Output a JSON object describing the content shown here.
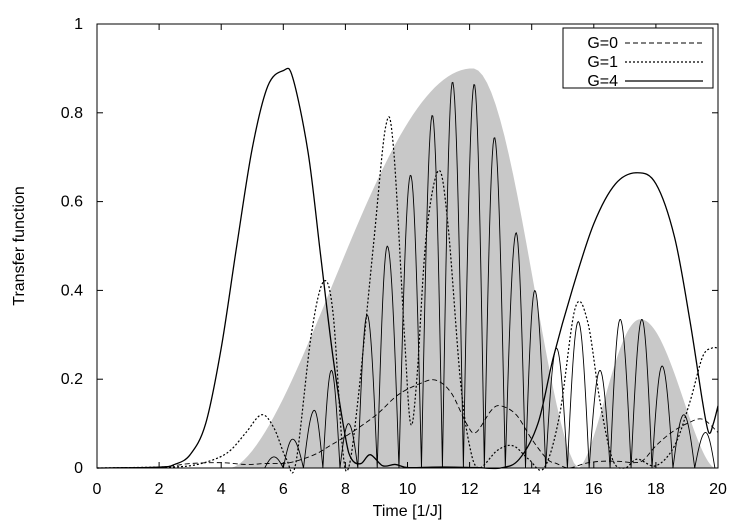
{
  "chart_data": {
    "type": "line",
    "title": "",
    "xlabel": "Time [1/J]",
    "ylabel": "Transfer function",
    "xlim": [
      0,
      20
    ],
    "ylim": [
      0,
      1
    ],
    "x_ticks": [
      "0",
      "2",
      "4",
      "6",
      "8",
      "10",
      "12",
      "14",
      "16",
      "18",
      "20"
    ],
    "y_ticks": [
      "0",
      "0.2",
      "0.4",
      "0.6",
      "0.8",
      "1"
    ],
    "grid": false,
    "legend_position": "top-right",
    "shaded_region": {
      "color": "#c8c8c8",
      "lobes": [
        {
          "x_start": 4.3,
          "x_end": 15.5,
          "peak_x": 12.1,
          "peak_y": 0.9
        },
        {
          "x_start": 15.5,
          "x_end": 19.9,
          "peak_x": 17.5,
          "peak_y": 0.335
        }
      ]
    },
    "series": [
      {
        "name": "G=0",
        "style": "dashed-thin",
        "points": [
          [
            0,
            0
          ],
          [
            2,
            0.002
          ],
          [
            3,
            0.01
          ],
          [
            4,
            0.012
          ],
          [
            4.8,
            0.008
          ],
          [
            5.4,
            0.01
          ],
          [
            6.2,
            0.012
          ],
          [
            7,
            0.03
          ],
          [
            7.5,
            0.05
          ],
          [
            8.2,
            0.08
          ],
          [
            9,
            0.12
          ],
          [
            9.7,
            0.165
          ],
          [
            10.4,
            0.19
          ],
          [
            10.9,
            0.198
          ],
          [
            11.4,
            0.17
          ],
          [
            11.9,
            0.1
          ],
          [
            12.2,
            0.08
          ],
          [
            12.7,
            0.13
          ],
          [
            13.0,
            0.14
          ],
          [
            13.5,
            0.12
          ],
          [
            14.0,
            0.065
          ],
          [
            14.5,
            0.02
          ],
          [
            14.8,
            0.01
          ],
          [
            15.2,
            0.0
          ],
          [
            15.7,
            0.01
          ],
          [
            16.2,
            0.015
          ],
          [
            16.8,
            0.015
          ],
          [
            17.3,
            0.012
          ],
          [
            17.6,
            0.018
          ],
          [
            18.0,
            0.05
          ],
          [
            18.5,
            0.08
          ],
          [
            19.0,
            0.1
          ],
          [
            19.5,
            0.11
          ],
          [
            20,
            0.08
          ]
        ]
      },
      {
        "name": "G=1",
        "style": "dotted",
        "points": [
          [
            0,
            0
          ],
          [
            2,
            0.002
          ],
          [
            3,
            0.005
          ],
          [
            3.8,
            0.02
          ],
          [
            4.3,
            0.04
          ],
          [
            4.8,
            0.08
          ],
          [
            5.3,
            0.12
          ],
          [
            5.7,
            0.09
          ],
          [
            6.1,
            0.02
          ],
          [
            6.4,
            0.01
          ],
          [
            6.9,
            0.3
          ],
          [
            7.3,
            0.42
          ],
          [
            7.6,
            0.35
          ],
          [
            7.9,
            0.05
          ],
          [
            8.1,
            0.0
          ],
          [
            8.4,
            0.15
          ],
          [
            8.9,
            0.5
          ],
          [
            9.3,
            0.77
          ],
          [
            9.55,
            0.72
          ],
          [
            9.9,
            0.3
          ],
          [
            10.1,
            0.1
          ],
          [
            10.3,
            0.2
          ],
          [
            10.6,
            0.52
          ],
          [
            11.0,
            0.67
          ],
          [
            11.3,
            0.55
          ],
          [
            11.7,
            0.2
          ],
          [
            12.0,
            0.05
          ],
          [
            12.3,
            0.0
          ],
          [
            12.9,
            0.04
          ],
          [
            13.4,
            0.05
          ],
          [
            13.9,
            0.02
          ],
          [
            14.4,
            0.0
          ],
          [
            14.9,
            0.12
          ],
          [
            15.4,
            0.36
          ],
          [
            15.8,
            0.33
          ],
          [
            16.2,
            0.15
          ],
          [
            16.6,
            0.02
          ],
          [
            17.0,
            0.0
          ],
          [
            17.4,
            0.02
          ],
          [
            18.0,
            0.005
          ],
          [
            18.6,
            0.05
          ],
          [
            19.1,
            0.15
          ],
          [
            19.5,
            0.25
          ],
          [
            19.8,
            0.27
          ],
          [
            20,
            0.27
          ]
        ]
      },
      {
        "name": "G=4",
        "style": "solid",
        "points": [
          [
            0,
            0
          ],
          [
            2,
            0.002
          ],
          [
            2.5,
            0.008
          ],
          [
            3.0,
            0.03
          ],
          [
            3.5,
            0.1
          ],
          [
            4.0,
            0.27
          ],
          [
            4.5,
            0.5
          ],
          [
            5.0,
            0.72
          ],
          [
            5.5,
            0.86
          ],
          [
            6.0,
            0.895
          ],
          [
            6.3,
            0.88
          ],
          [
            6.8,
            0.71
          ],
          [
            7.2,
            0.48
          ],
          [
            7.6,
            0.25
          ],
          [
            8.0,
            0.07
          ],
          [
            8.2,
            0.02
          ],
          [
            8.5,
            0.01
          ],
          [
            8.8,
            0.03
          ],
          [
            9.2,
            0.005
          ],
          [
            9.6,
            0.008
          ],
          [
            10.0,
            0.001
          ],
          [
            10.8,
            0.002
          ],
          [
            11.5,
            0.002
          ],
          [
            12.2,
            0.001
          ],
          [
            13.0,
            0.0
          ],
          [
            13.6,
            0.02
          ],
          [
            14.2,
            0.1
          ],
          [
            14.7,
            0.25
          ],
          [
            15.3,
            0.4
          ],
          [
            16.0,
            0.55
          ],
          [
            16.7,
            0.64
          ],
          [
            17.4,
            0.665
          ],
          [
            18.0,
            0.64
          ],
          [
            18.6,
            0.52
          ],
          [
            19.1,
            0.33
          ],
          [
            19.5,
            0.15
          ],
          [
            19.7,
            0.08
          ],
          [
            19.85,
            0.1
          ],
          [
            20,
            0.14
          ]
        ]
      },
      {
        "name": "",
        "style": "solid-thin",
        "oscillating_peaks": [
          [
            5.7,
            0.025
          ],
          [
            6.3,
            0.065
          ],
          [
            7.0,
            0.13
          ],
          [
            7.55,
            0.22
          ],
          [
            8.1,
            0.1
          ],
          [
            8.7,
            0.345
          ],
          [
            9.35,
            0.5
          ],
          [
            10.1,
            0.66
          ],
          [
            10.8,
            0.795
          ],
          [
            11.45,
            0.87
          ],
          [
            12.15,
            0.865
          ],
          [
            12.8,
            0.745
          ],
          [
            13.5,
            0.53
          ],
          [
            14.1,
            0.4
          ],
          [
            14.8,
            0.27
          ],
          [
            15.5,
            0.33
          ],
          [
            16.2,
            0.22
          ],
          [
            16.85,
            0.335
          ],
          [
            17.55,
            0.335
          ],
          [
            18.2,
            0.23
          ],
          [
            18.9,
            0.12
          ],
          [
            19.6,
            0.08
          ]
        ]
      }
    ]
  }
}
